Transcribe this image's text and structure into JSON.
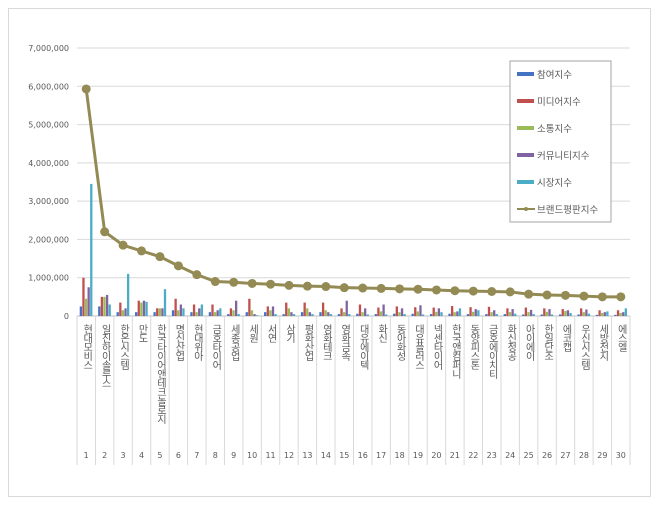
{
  "chart_data": {
    "type": "bar+line",
    "categories": [
      "현대모비스",
      "일진하이솔루스",
      "한온시스템",
      "만도",
      "한국타이어앤테크놀로지",
      "명신산업",
      "현대위아",
      "금호타이어",
      "세종공업",
      "세원",
      "서연",
      "삼기",
      "평화산업",
      "영화테크",
      "영화금속",
      "대유에이텍",
      "화신",
      "동아화성",
      "대유플러스",
      "넥센타이어",
      "한국앤컴퍼니",
      "동양피스톤",
      "금호에이치티",
      "화신정공",
      "아이에이",
      "한일단조",
      "에코캡",
      "우신시스템",
      "세방전지",
      "에스엘"
    ],
    "ranks": [
      "1",
      "2",
      "3",
      "4",
      "5",
      "6",
      "7",
      "8",
      "9",
      "10",
      "11",
      "12",
      "13",
      "14",
      "15",
      "16",
      "17",
      "18",
      "19",
      "20",
      "21",
      "22",
      "23",
      "24",
      "25",
      "26",
      "27",
      "28",
      "29",
      "30"
    ],
    "yticks": [
      "0",
      "1,000,000",
      "2,000,000",
      "3,000,000",
      "4,000,000",
      "5,000,000",
      "6,000,000",
      "7,000,000"
    ],
    "ylim": [
      0,
      7000000
    ],
    "grid": true,
    "legend_placement": "right",
    "series": [
      {
        "name": "참여지수",
        "kind": "bar",
        "color": "#4472c4",
        "values": [
          250000,
          250000,
          100000,
          100000,
          100000,
          150000,
          100000,
          100000,
          50000,
          100000,
          100000,
          50000,
          100000,
          100000,
          50000,
          60000,
          50000,
          60000,
          60000,
          50000,
          60000,
          50000,
          50000,
          50000,
          40000,
          40000,
          40000,
          40000,
          30000,
          30000
        ]
      },
      {
        "name": "미디어지수",
        "kind": "bar",
        "color": "#c0504d",
        "values": [
          1000000,
          500000,
          350000,
          400000,
          200000,
          450000,
          300000,
          300000,
          200000,
          450000,
          250000,
          350000,
          350000,
          350000,
          200000,
          300000,
          220000,
          250000,
          230000,
          220000,
          260000,
          230000,
          240000,
          200000,
          220000,
          200000,
          180000,
          200000,
          150000,
          150000
        ]
      },
      {
        "name": "소통지수",
        "kind": "bar",
        "color": "#9bbb59",
        "values": [
          450000,
          500000,
          150000,
          350000,
          200000,
          150000,
          100000,
          100000,
          150000,
          150000,
          150000,
          200000,
          200000,
          150000,
          100000,
          100000,
          120000,
          100000,
          120000,
          110000,
          100000,
          110000,
          100000,
          100000,
          100000,
          110000,
          130000,
          100000,
          80000,
          80000
        ]
      },
      {
        "name": "커뮤니티지수",
        "kind": "bar",
        "color": "#8064a2",
        "values": [
          750000,
          550000,
          200000,
          400000,
          200000,
          300000,
          200000,
          150000,
          400000,
          50000,
          250000,
          100000,
          100000,
          100000,
          400000,
          200000,
          300000,
          200000,
          280000,
          200000,
          120000,
          180000,
          150000,
          180000,
          160000,
          180000,
          150000,
          170000,
          100000,
          100000
        ]
      },
      {
        "name": "시장지수",
        "kind": "bar",
        "color": "#4bacc6",
        "values": [
          3450000,
          300000,
          1100000,
          370000,
          700000,
          200000,
          300000,
          200000,
          50000,
          20000,
          50000,
          50000,
          50000,
          50000,
          50000,
          40000,
          40000,
          50000,
          40000,
          100000,
          200000,
          150000,
          50000,
          60000,
          50000,
          40000,
          80000,
          60000,
          120000,
          200000
        ]
      },
      {
        "name": "브랜드평판지수",
        "kind": "line",
        "color": "#948a54",
        "values": [
          5930000,
          2200000,
          1850000,
          1700000,
          1550000,
          1310000,
          1080000,
          900000,
          880000,
          850000,
          830000,
          800000,
          780000,
          770000,
          740000,
          730000,
          720000,
          710000,
          700000,
          680000,
          660000,
          650000,
          640000,
          630000,
          570000,
          550000,
          540000,
          520000,
          500000,
          500000
        ]
      }
    ]
  }
}
